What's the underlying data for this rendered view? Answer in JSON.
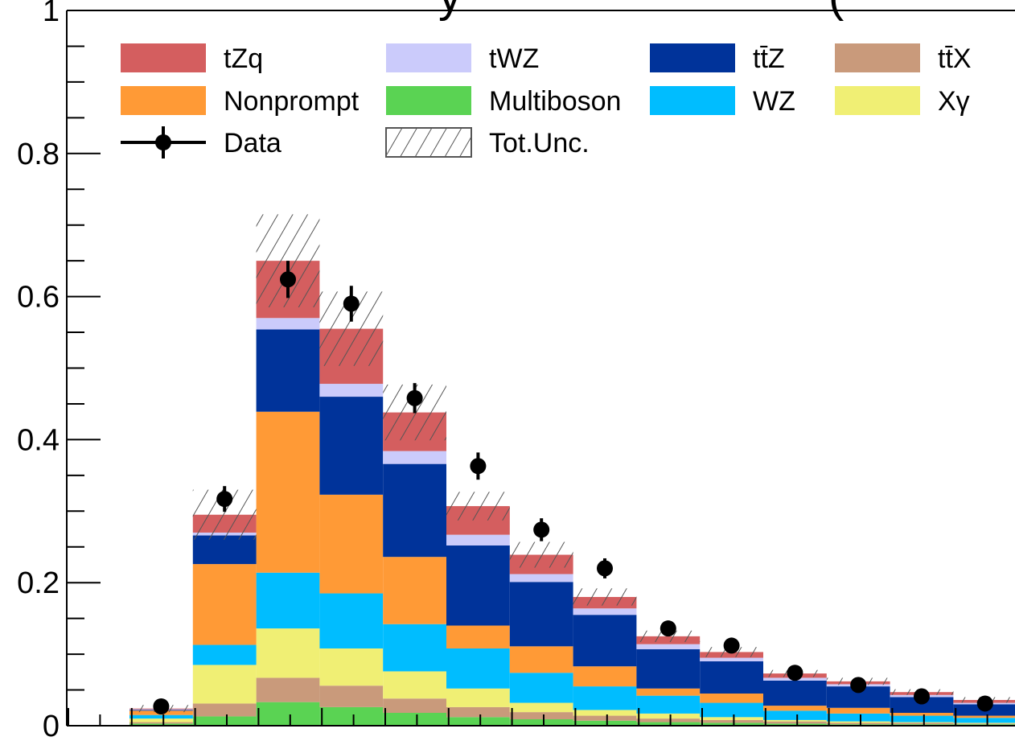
{
  "chart_data": {
    "type": "bar",
    "stacked": true,
    "title": "",
    "xlabel": "",
    "ylabel": "",
    "ylim": [
      0,
      1.0
    ],
    "y_ticks": [
      "0",
      "0.2",
      "0.4",
      "0.6",
      "0.8",
      "1"
    ],
    "n_bins": 14,
    "legend": {
      "position": "top",
      "columns": 4,
      "entries": [
        {
          "label": "tZq",
          "key": "tZq",
          "type": "fill"
        },
        {
          "label": "tWZ",
          "key": "tWZ",
          "type": "fill"
        },
        {
          "label": "tt̄Z",
          "key": "ttZ",
          "type": "fill"
        },
        {
          "label": "tt̄X",
          "key": "ttX",
          "type": "fill"
        },
        {
          "label": "Nonprompt",
          "key": "Nonprompt",
          "type": "fill"
        },
        {
          "label": "Multiboson",
          "key": "Multiboson",
          "type": "fill"
        },
        {
          "label": "WZ",
          "key": "WZ",
          "type": "fill"
        },
        {
          "label": "Xγ",
          "key": "Xgamma",
          "type": "fill"
        },
        {
          "label": "Data",
          "key": "Data",
          "type": "marker"
        },
        {
          "label": "Tot.Unc.",
          "key": "TotUnc",
          "type": "hatch"
        }
      ]
    },
    "series": [
      {
        "key": "Multiboson",
        "color": "#5ad353",
        "values": [
          0.003,
          0.013,
          0.033,
          0.026,
          0.018,
          0.012,
          0.009,
          0.007,
          0.005,
          0.004,
          0.003,
          0.002,
          0.002,
          0.002
        ]
      },
      {
        "key": "ttX",
        "color": "#c99a7b",
        "values": [
          0.002,
          0.018,
          0.034,
          0.03,
          0.02,
          0.014,
          0.01,
          0.007,
          0.005,
          0.004,
          0.003,
          0.002,
          0.002,
          0.001
        ]
      },
      {
        "key": "Xgamma",
        "color": "#f0ef74",
        "values": [
          0.005,
          0.054,
          0.069,
          0.052,
          0.038,
          0.026,
          0.013,
          0.008,
          0.007,
          0.004,
          0.002,
          0.002,
          0.001,
          0.001
        ]
      },
      {
        "key": "WZ",
        "color": "#00bdff",
        "values": [
          0.005,
          0.028,
          0.078,
          0.077,
          0.066,
          0.056,
          0.042,
          0.033,
          0.025,
          0.02,
          0.013,
          0.011,
          0.009,
          0.007
        ]
      },
      {
        "key": "Nonprompt",
        "color": "#ff9a36",
        "values": [
          0.006,
          0.113,
          0.225,
          0.138,
          0.094,
          0.032,
          0.037,
          0.028,
          0.01,
          0.013,
          0.007,
          0.008,
          0.004,
          0.003
        ]
      },
      {
        "key": "ttZ",
        "color": "#00339a",
        "values": [
          0.001,
          0.04,
          0.115,
          0.137,
          0.13,
          0.112,
          0.09,
          0.072,
          0.055,
          0.045,
          0.035,
          0.03,
          0.022,
          0.016
        ]
      },
      {
        "key": "tWZ",
        "color": "#cbcbfb",
        "values": [
          0.001,
          0.004,
          0.016,
          0.018,
          0.018,
          0.015,
          0.011,
          0.009,
          0.007,
          0.005,
          0.004,
          0.003,
          0.003,
          0.002
        ]
      },
      {
        "key": "tZq",
        "color": "#d45e5f",
        "values": [
          0.001,
          0.025,
          0.08,
          0.077,
          0.054,
          0.04,
          0.027,
          0.016,
          0.011,
          0.008,
          0.006,
          0.004,
          0.004,
          0.004
        ]
      }
    ],
    "data": {
      "key": "Data",
      "values": [
        0.027,
        0.317,
        0.624,
        0.59,
        0.458,
        0.363,
        0.274,
        0.22,
        0.136,
        0.112,
        0.074,
        0.057,
        0.041,
        0.031
      ],
      "errors": [
        0.005,
        0.018,
        0.026,
        0.025,
        0.021,
        0.019,
        0.016,
        0.014,
        0.011,
        0.01,
        0.008,
        0.007,
        0.006,
        0.005
      ]
    },
    "total_uncertainty": [
      0.005,
      0.035,
      0.065,
      0.052,
      0.039,
      0.02,
      0.018,
      0.012,
      0.008,
      0.007,
      0.005,
      0.005,
      0.004,
      0.004
    ],
    "title_visible_fragment": "y",
    "title_visible_fragment_2": "("
  }
}
